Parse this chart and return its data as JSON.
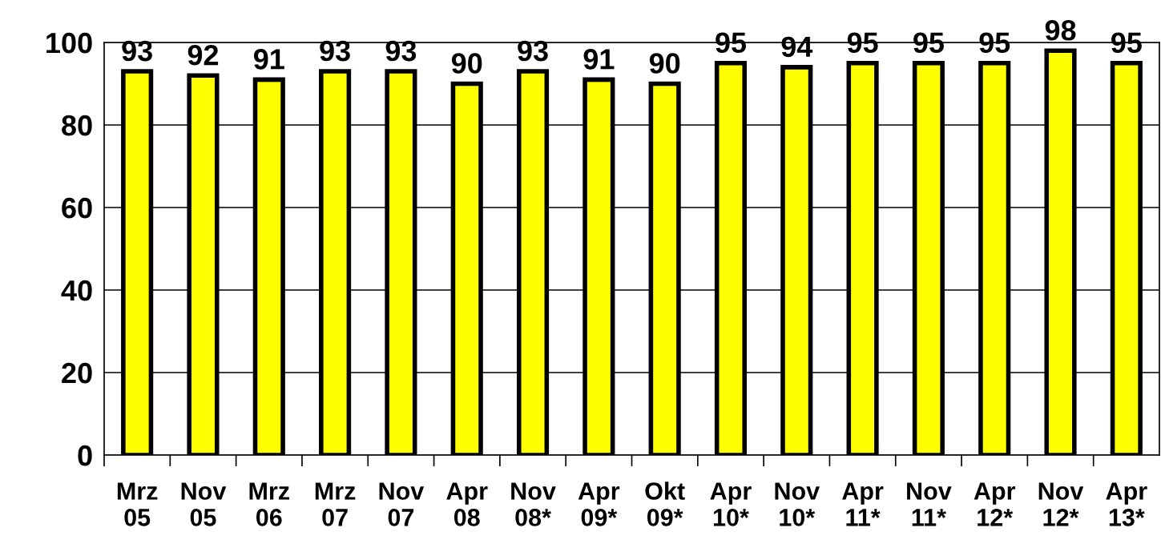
{
  "chart_data": {
    "type": "bar",
    "categories": [
      "Mrz\n05",
      "Nov\n05",
      "Mrz\n06",
      "Mrz\n07",
      "Nov\n07",
      "Apr\n08",
      "Nov\n08*",
      "Apr\n09*",
      "Okt\n09*",
      "Apr\n10*",
      "Nov\n10*",
      "Apr\n11*",
      "Nov\n11*",
      "Apr\n12*",
      "Nov\n12*",
      "Apr\n13*"
    ],
    "values": [
      93,
      92,
      91,
      93,
      93,
      90,
      93,
      91,
      90,
      95,
      94,
      95,
      95,
      95,
      98,
      95
    ],
    "color": "#ffff00",
    "ylim": [
      0,
      100
    ],
    "yticks": [
      0,
      20,
      40,
      60,
      80,
      100
    ],
    "grid": "y",
    "data_labels": true
  }
}
